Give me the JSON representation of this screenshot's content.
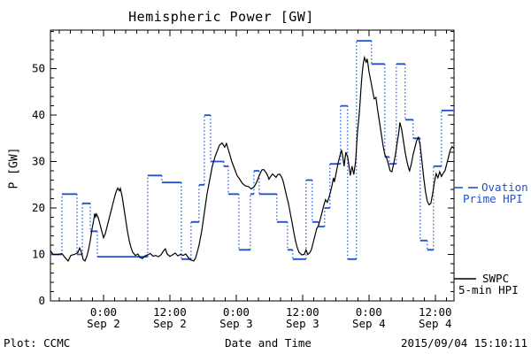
{
  "chart_data": {
    "type": "line",
    "title": "Hemispheric Power [GW]",
    "xlabel": "Date and Time",
    "ylabel": "P [GW]",
    "xlim": [
      0,
      73
    ],
    "ylim": [
      0,
      58.3
    ],
    "y_major_ticks": [
      0,
      10,
      20,
      30,
      40,
      50
    ],
    "y_minor_step": 2,
    "x_major_ticks": [
      {
        "t": 9.6,
        "time": "0:00",
        "date": "Sep 2"
      },
      {
        "t": 21.6,
        "time": "12:00",
        "date": "Sep 2"
      },
      {
        "t": 33.6,
        "time": "0:00",
        "date": "Sep 3"
      },
      {
        "t": 45.6,
        "time": "12:00",
        "date": "Sep 3"
      },
      {
        "t": 57.6,
        "time": "0:00",
        "date": "Sep 4"
      },
      {
        "t": 69.6,
        "time": "12:00",
        "date": "Sep 4"
      }
    ],
    "x_minor": {
      "start": 1.6,
      "step": 2
    },
    "series": [
      {
        "name": "Ovation Prime HPI",
        "style": "step",
        "color": "#2151d0",
        "steps": [
          [
            0,
            2.08,
            10
          ],
          [
            2.08,
            4.8,
            23
          ],
          [
            4.8,
            5.76,
            10
          ],
          [
            5.76,
            7.2,
            21
          ],
          [
            7.2,
            8.48,
            15
          ],
          [
            8.48,
            17.6,
            9.5
          ],
          [
            17.6,
            20.16,
            27
          ],
          [
            20.16,
            23.68,
            25.5
          ],
          [
            23.68,
            25.44,
            9
          ],
          [
            25.44,
            26.88,
            17
          ],
          [
            26.88,
            27.84,
            25
          ],
          [
            27.84,
            28.96,
            40
          ],
          [
            28.96,
            31.36,
            30
          ],
          [
            31.36,
            32.16,
            29
          ],
          [
            32.16,
            34.08,
            23
          ],
          [
            34.08,
            36.16,
            11
          ],
          [
            36.16,
            36.8,
            23
          ],
          [
            36.8,
            37.76,
            28
          ],
          [
            37.76,
            40.96,
            23
          ],
          [
            40.96,
            42.88,
            17
          ],
          [
            42.88,
            43.84,
            11
          ],
          [
            43.84,
            46.24,
            9
          ],
          [
            46.24,
            47.36,
            26
          ],
          [
            47.36,
            48.48,
            17
          ],
          [
            48.48,
            49.6,
            16
          ],
          [
            49.6,
            50.56,
            20
          ],
          [
            50.56,
            52.48,
            29.5
          ],
          [
            52.48,
            53.76,
            42
          ],
          [
            53.76,
            55.36,
            9
          ],
          [
            55.36,
            58.08,
            56
          ],
          [
            58.08,
            60.48,
            51
          ],
          [
            60.48,
            61.28,
            31
          ],
          [
            61.28,
            62.56,
            29.5
          ],
          [
            62.56,
            64.16,
            51
          ],
          [
            64.16,
            65.6,
            39
          ],
          [
            65.6,
            66.88,
            35
          ],
          [
            66.88,
            68.16,
            13
          ],
          [
            68.16,
            69.28,
            11
          ],
          [
            69.28,
            70.72,
            29
          ],
          [
            70.72,
            73,
            41
          ]
        ]
      },
      {
        "name": "SWPC 5-min HPI",
        "style": "line",
        "color": "#000000",
        "points": [
          [
            0,
            10.8
          ],
          [
            0.48,
            10
          ],
          [
            1.44,
            10
          ],
          [
            2.08,
            10.2
          ],
          [
            2.72,
            9.2
          ],
          [
            3.2,
            8.6
          ],
          [
            3.68,
            9.8
          ],
          [
            4.32,
            10
          ],
          [
            4.96,
            10.4
          ],
          [
            5.28,
            11.4
          ],
          [
            5.6,
            10.5
          ],
          [
            5.92,
            8.9
          ],
          [
            6.24,
            8.6
          ],
          [
            6.56,
            9.5
          ],
          [
            6.88,
            11
          ],
          [
            7.2,
            13
          ],
          [
            7.52,
            15.5
          ],
          [
            7.84,
            17.5
          ],
          [
            8,
            18.8
          ],
          [
            8.16,
            18.1
          ],
          [
            8.32,
            18.7
          ],
          [
            8.64,
            17.9
          ],
          [
            8.96,
            16.5
          ],
          [
            9.28,
            15
          ],
          [
            9.6,
            13.6
          ],
          [
            9.92,
            14.5
          ],
          [
            10.24,
            16
          ],
          [
            10.56,
            17.5
          ],
          [
            10.88,
            19
          ],
          [
            11.2,
            20.5
          ],
          [
            11.52,
            22
          ],
          [
            11.84,
            23.4
          ],
          [
            12.16,
            24.3
          ],
          [
            12.48,
            23.7
          ],
          [
            12.64,
            24.2
          ],
          [
            12.96,
            22.5
          ],
          [
            13.28,
            20
          ],
          [
            13.6,
            17.5
          ],
          [
            13.92,
            15
          ],
          [
            14.24,
            13
          ],
          [
            14.56,
            11.5
          ],
          [
            14.88,
            10.5
          ],
          [
            15.36,
            9.8
          ],
          [
            15.84,
            10.1
          ],
          [
            16.16,
            9.4
          ],
          [
            16.64,
            9.1
          ],
          [
            17.12,
            9.7
          ],
          [
            17.6,
            9.9
          ],
          [
            18.08,
            10.2
          ],
          [
            18.56,
            9.6
          ],
          [
            19.04,
            9.8
          ],
          [
            19.52,
            9.5
          ],
          [
            20,
            9.9
          ],
          [
            20.48,
            10.8
          ],
          [
            20.8,
            11.2
          ],
          [
            21.12,
            10.1
          ],
          [
            21.6,
            9.6
          ],
          [
            22.08,
            9.9
          ],
          [
            22.56,
            10.3
          ],
          [
            23.04,
            9.7
          ],
          [
            23.52,
            10
          ],
          [
            24,
            9.8
          ],
          [
            24.48,
            10.1
          ],
          [
            24.96,
            9.3
          ],
          [
            25.44,
            8.8
          ],
          [
            25.92,
            8.6
          ],
          [
            26.24,
            9.2
          ],
          [
            26.56,
            10.5
          ],
          [
            26.88,
            12
          ],
          [
            27.36,
            15
          ],
          [
            27.84,
            19
          ],
          [
            28.32,
            23
          ],
          [
            28.8,
            26
          ],
          [
            29.28,
            29
          ],
          [
            29.76,
            31
          ],
          [
            30.24,
            32.5
          ],
          [
            30.56,
            33.5
          ],
          [
            31.04,
            34
          ],
          [
            31.52,
            33.1
          ],
          [
            31.84,
            33.9
          ],
          [
            32.32,
            32
          ],
          [
            32.8,
            30
          ],
          [
            33.28,
            28.5
          ],
          [
            33.76,
            27
          ],
          [
            34.24,
            26.2
          ],
          [
            34.72,
            25.3
          ],
          [
            35.2,
            24.8
          ],
          [
            35.84,
            24.6
          ],
          [
            36.32,
            24.1
          ],
          [
            36.8,
            24.5
          ],
          [
            37.28,
            25.5
          ],
          [
            37.76,
            27
          ],
          [
            38.24,
            28.2
          ],
          [
            38.56,
            28.3
          ],
          [
            38.88,
            27.8
          ],
          [
            39.2,
            27.2
          ],
          [
            39.52,
            26.2
          ],
          [
            39.84,
            26.8
          ],
          [
            40.16,
            27.3
          ],
          [
            40.48,
            27
          ],
          [
            40.8,
            26.6
          ],
          [
            41.12,
            27.2
          ],
          [
            41.44,
            27.3
          ],
          [
            41.76,
            26.8
          ],
          [
            42.08,
            25.8
          ],
          [
            42.4,
            24.2
          ],
          [
            42.72,
            22.5
          ],
          [
            43.04,
            21
          ],
          [
            43.36,
            19
          ],
          [
            43.68,
            17
          ],
          [
            44,
            15
          ],
          [
            44.32,
            13
          ],
          [
            44.64,
            11.5
          ],
          [
            44.96,
            10.5
          ],
          [
            45.44,
            9.9
          ],
          [
            45.92,
            10
          ],
          [
            46.24,
            11
          ],
          [
            46.56,
            10
          ],
          [
            46.88,
            10.3
          ],
          [
            47.2,
            11
          ],
          [
            47.52,
            12.5
          ],
          [
            47.84,
            14
          ],
          [
            48.16,
            15.5
          ],
          [
            48.48,
            16.2
          ],
          [
            48.8,
            17.5
          ],
          [
            49.12,
            19
          ],
          [
            49.44,
            20.5
          ],
          [
            49.76,
            21.8
          ],
          [
            50.08,
            21.2
          ],
          [
            50.4,
            22.3
          ],
          [
            50.88,
            24.5
          ],
          [
            51.2,
            26.5
          ],
          [
            51.36,
            25.6
          ],
          [
            51.68,
            27.5
          ],
          [
            52,
            29.5
          ],
          [
            52.32,
            31
          ],
          [
            52.64,
            32.5
          ],
          [
            52.96,
            30.5
          ],
          [
            53.12,
            29
          ],
          [
            53.44,
            32
          ],
          [
            53.76,
            31
          ],
          [
            54.08,
            28.5
          ],
          [
            54.24,
            27
          ],
          [
            54.56,
            29
          ],
          [
            54.88,
            27.2
          ],
          [
            55.2,
            30
          ],
          [
            55.36,
            33
          ],
          [
            55.52,
            36
          ],
          [
            55.68,
            38
          ],
          [
            55.84,
            40
          ],
          [
            56,
            42.5
          ],
          [
            56.16,
            45.5
          ],
          [
            56.32,
            48
          ],
          [
            56.48,
            50
          ],
          [
            56.64,
            51.5
          ],
          [
            56.8,
            52.4
          ],
          [
            56.96,
            51.8
          ],
          [
            57.12,
            51.4
          ],
          [
            57.28,
            52.1
          ],
          [
            57.44,
            51
          ],
          [
            57.6,
            49.5
          ],
          [
            57.92,
            47.5
          ],
          [
            58.24,
            45.5
          ],
          [
            58.56,
            43.5
          ],
          [
            58.88,
            43.8
          ],
          [
            59.2,
            41
          ],
          [
            59.52,
            38.5
          ],
          [
            59.84,
            36
          ],
          [
            60.16,
            33.5
          ],
          [
            60.48,
            31.5
          ],
          [
            60.8,
            30.8
          ],
          [
            61.12,
            29.5
          ],
          [
            61.44,
            28
          ],
          [
            61.76,
            27.8
          ],
          [
            62.08,
            29.5
          ],
          [
            62.4,
            31.5
          ],
          [
            62.72,
            34
          ],
          [
            63.04,
            36.5
          ],
          [
            63.2,
            38.4
          ],
          [
            63.52,
            37
          ],
          [
            63.84,
            34.5
          ],
          [
            64.16,
            32
          ],
          [
            64.48,
            30
          ],
          [
            64.8,
            28.5
          ],
          [
            64.96,
            28
          ],
          [
            65.28,
            29.5
          ],
          [
            65.6,
            31.5
          ],
          [
            65.92,
            33
          ],
          [
            66.24,
            34.5
          ],
          [
            66.56,
            35.2
          ],
          [
            66.88,
            33.5
          ],
          [
            67.2,
            30
          ],
          [
            67.52,
            26.5
          ],
          [
            67.84,
            23.5
          ],
          [
            68.16,
            21.5
          ],
          [
            68.48,
            20.7
          ],
          [
            68.8,
            21
          ],
          [
            69.12,
            23
          ],
          [
            69.44,
            25.5
          ],
          [
            69.76,
            27.4
          ],
          [
            70.08,
            26.5
          ],
          [
            70.4,
            27.8
          ],
          [
            70.72,
            26.8
          ],
          [
            71.04,
            27.5
          ],
          [
            71.36,
            28
          ],
          [
            71.68,
            29.5
          ],
          [
            72,
            31
          ],
          [
            72.32,
            32.5
          ],
          [
            72.64,
            33.2
          ],
          [
            73,
            32.8
          ]
        ]
      }
    ]
  },
  "legend": {
    "ovation": {
      "line1": "Ovation",
      "line2": "Prime HPI"
    },
    "swpc": {
      "line1": "SWPC",
      "line2": "5-min HPI"
    }
  },
  "footer": {
    "left": "Plot: CCMC",
    "right": "2015/09/04 15:10:11"
  }
}
